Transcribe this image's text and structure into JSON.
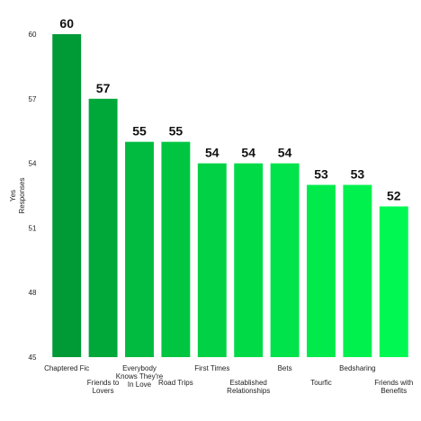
{
  "chart_data": {
    "type": "bar",
    "title": "",
    "xlabel": "",
    "ylabel": "Yes Responses",
    "ylabel_lines": [
      "Yes",
      "Responses"
    ],
    "ylim": [
      45,
      60
    ],
    "yticks": [
      45,
      48,
      51,
      54,
      57,
      60
    ],
    "grid": false,
    "categories": [
      "Chaptered Fic",
      "Friends to Lovers",
      "Everybody Knows They're In Love",
      "Road Trips",
      "First Times",
      "Established Relationships",
      "Bets",
      "Tourfic",
      "Bedsharing",
      "Friends with Benefits"
    ],
    "category_label_lines": [
      [
        "Chaptered Fic"
      ],
      [
        "Friends to",
        "Lovers"
      ],
      [
        "Everybody",
        "Knows They're",
        "In Love"
      ],
      [
        "Road Trips"
      ],
      [
        "First Times"
      ],
      [
        "Established",
        "Relationships"
      ],
      [
        "Bets"
      ],
      [
        "Tourfic"
      ],
      [
        "Bedsharing"
      ],
      [
        "Friends with",
        "Benefits"
      ]
    ],
    "values": [
      60,
      57,
      55,
      55,
      54,
      54,
      54,
      53,
      53,
      52
    ],
    "colors": [
      "#009a36",
      "#00a83a",
      "#00bb3f",
      "#00c541",
      "#00d145",
      "#00da47",
      "#00e34a",
      "#00ea4c",
      "#00f14e",
      "#00f853"
    ]
  }
}
